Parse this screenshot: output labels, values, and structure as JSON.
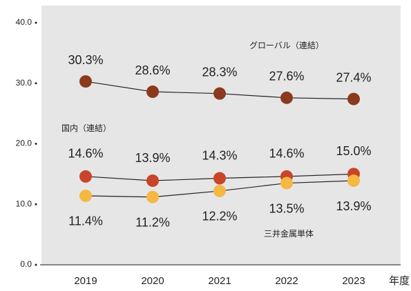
{
  "chart_data": {
    "type": "line",
    "categories": [
      "2019",
      "2020",
      "2021",
      "2022",
      "2023"
    ],
    "x_label": "年度",
    "series": [
      {
        "name": "グローバル（連結）",
        "color": "#8b3a1e",
        "values": [
          30.3,
          28.6,
          28.3,
          27.6,
          27.4
        ],
        "value_labels": [
          "30.3%",
          "28.6%",
          "28.3%",
          "27.6%",
          "27.4%"
        ]
      },
      {
        "name": "国内（連結）",
        "color": "#c8452a",
        "values": [
          14.6,
          13.9,
          14.3,
          14.6,
          15.0
        ],
        "value_labels": [
          "14.6%",
          "13.9%",
          "14.3%",
          "14.6%",
          "15.0%"
        ]
      },
      {
        "name": "三井金属単体",
        "color": "#f4b843",
        "values": [
          11.4,
          11.2,
          12.2,
          13.5,
          13.9
        ],
        "value_labels": [
          "11.4%",
          "11.2%",
          "12.2%",
          "13.5%",
          "13.9%"
        ]
      }
    ],
    "ylim": [
      0,
      40
    ],
    "yticks": [
      {
        "value": 0,
        "label": "0.0"
      },
      {
        "value": 10,
        "label": "10.0"
      },
      {
        "value": 20,
        "label": "20.0"
      },
      {
        "value": 30,
        "label": "30.0"
      },
      {
        "value": 40,
        "label": "40.0"
      }
    ],
    "line_color": "#222222",
    "background": "#e6e6e6"
  }
}
